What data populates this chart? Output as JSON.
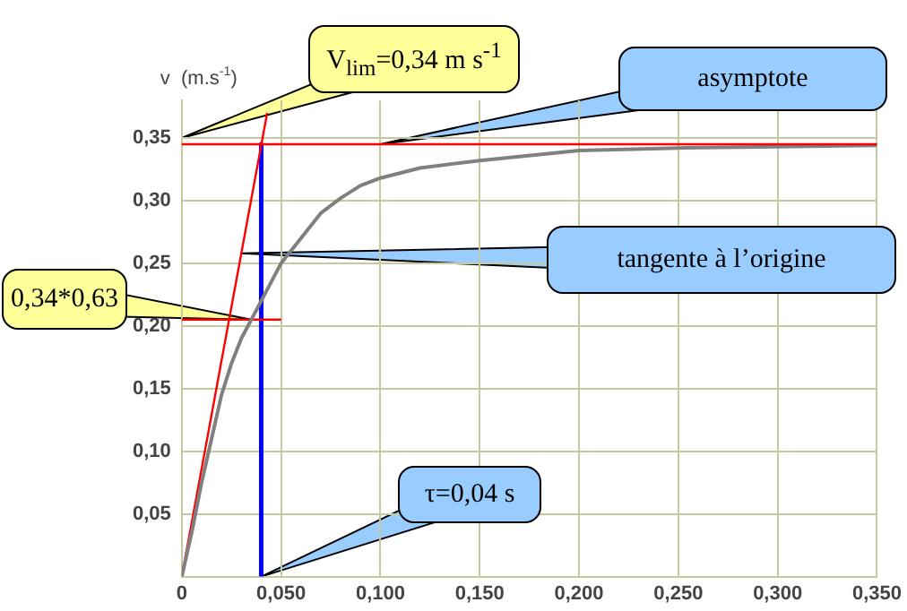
{
  "chart_data": {
    "type": "line",
    "ylabel": "v  (m.s$^{-1}$)",
    "x": [
      0,
      0.005,
      0.01,
      0.015,
      0.02,
      0.025,
      0.03,
      0.035,
      0.04,
      0.045,
      0.05,
      0.06,
      0.07,
      0.08,
      0.09,
      0.1,
      0.12,
      0.15,
      0.2,
      0.25,
      0.3,
      0.35
    ],
    "series": [
      {
        "color": "#808080",
        "values": [
          0,
          0.035,
          0.075,
          0.11,
          0.145,
          0.17,
          0.19,
          0.205,
          0.22,
          0.235,
          0.25,
          0.27,
          0.29,
          0.302,
          0.312,
          0.318,
          0.326,
          0.332,
          0.34,
          0.342,
          0.343,
          0.344
        ]
      },
      {
        "color": "#ff0000",
        "x": [
          0,
          0.043
        ],
        "values": [
          0,
          0.37
        ]
      },
      {
        "color": "#ff0000",
        "x": [
          0,
          0.05
        ],
        "values": [
          0.205,
          0.205
        ]
      },
      {
        "color": "#0000ff",
        "x": [
          0.04,
          0.04
        ],
        "values": [
          0.345,
          0
        ]
      }
    ],
    "ref_lines": [
      {
        "axis": "y",
        "value": 0.345,
        "color": "#ff0000"
      }
    ],
    "xlim": [
      0,
      0.35
    ],
    "ylim": [
      0,
      0.38
    ],
    "xticks": [
      {
        "value": 0,
        "label": "0"
      },
      {
        "value": 0.05,
        "label": "0,050"
      },
      {
        "value": 0.1,
        "label": "0,100"
      },
      {
        "value": 0.15,
        "label": "0,150"
      },
      {
        "value": 0.2,
        "label": "0,200"
      },
      {
        "value": 0.25,
        "label": "0,250"
      },
      {
        "value": 0.3,
        "label": "0,300"
      },
      {
        "value": 0.35,
        "label": "0,350"
      }
    ],
    "yticks": [
      {
        "value": 0.05,
        "label": "0,05"
      },
      {
        "value": 0.1,
        "label": "0,10"
      },
      {
        "value": 0.15,
        "label": "0,15"
      },
      {
        "value": 0.2,
        "label": "0,20"
      },
      {
        "value": 0.25,
        "label": "0,25"
      },
      {
        "value": 0.3,
        "label": "0,30"
      },
      {
        "value": 0.35,
        "label": "0,35"
      }
    ],
    "grid": true,
    "legend": false,
    "marker": "none",
    "line_style": "solid",
    "annotations": [
      {
        "text": "V$_{lim}$=0,34 m s$^{-1}$",
        "x": 0,
        "y": 0.35
      },
      {
        "text": "asymptote",
        "x": 0.1,
        "y": 0.345
      },
      {
        "text": "0,34*0,63",
        "x": 0.035,
        "y": 0.205
      },
      {
        "text": "tangente à l’origine",
        "x": 0.03,
        "y": 0.258
      },
      {
        "text": "τ=0,04 s",
        "x": 0.04,
        "y": 0
      }
    ]
  }
}
